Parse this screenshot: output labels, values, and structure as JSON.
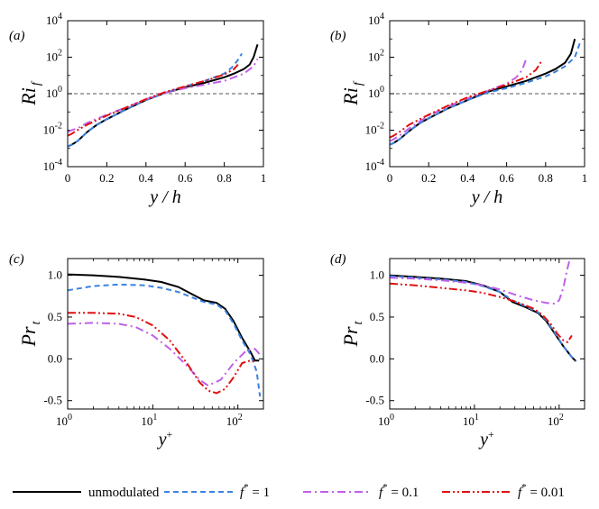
{
  "chart_data": [
    {
      "type": "line",
      "panel": "(a)",
      "ylabel": "Ri",
      "ylabel_sub": "f",
      "xlabel": "y / h",
      "x_scale": "linear",
      "y_scale": "log",
      "xlim": [
        0,
        1
      ],
      "ylim_exp": [
        -4,
        4
      ],
      "x_ticks": [
        0,
        0.2,
        0.4,
        0.6,
        0.8,
        1
      ],
      "x_tick_labels": [
        "0",
        "0.2",
        "0.4",
        "0.6",
        "0.8",
        "1"
      ],
      "y_tick_exps": [
        -4,
        -2,
        0,
        2,
        4
      ],
      "reference_line_exp": 0,
      "series": [
        {
          "name": "unmodulated",
          "x": [
            0,
            0.02,
            0.05,
            0.1,
            0.15,
            0.2,
            0.3,
            0.4,
            0.5,
            0.6,
            0.7,
            0.8,
            0.85,
            0.9,
            0.93,
            0.95,
            0.97
          ],
          "log10y": [
            -2.9,
            -2.8,
            -2.6,
            -2.1,
            -1.7,
            -1.4,
            -0.85,
            -0.35,
            0.05,
            0.35,
            0.6,
            0.9,
            1.1,
            1.35,
            1.6,
            2.0,
            2.7
          ]
        },
        {
          "name": "f* = 1",
          "x": [
            0,
            0.02,
            0.05,
            0.1,
            0.15,
            0.2,
            0.3,
            0.4,
            0.5,
            0.6,
            0.7,
            0.8,
            0.84,
            0.87,
            0.89
          ],
          "log10y": [
            -2.9,
            -2.8,
            -2.6,
            -2.1,
            -1.7,
            -1.4,
            -0.85,
            -0.35,
            0.05,
            0.4,
            0.7,
            1.1,
            1.45,
            1.85,
            2.2
          ]
        },
        {
          "name": "f* = 0.1",
          "x": [
            0,
            0.02,
            0.05,
            0.1,
            0.2,
            0.3,
            0.4,
            0.5,
            0.6,
            0.7,
            0.8,
            0.9,
            0.95,
            0.97
          ],
          "log10y": [
            -2.1,
            -2.0,
            -1.9,
            -1.6,
            -1.15,
            -0.75,
            -0.3,
            0.05,
            0.3,
            0.5,
            0.7,
            1.1,
            1.5,
            1.9
          ]
        },
        {
          "name": "f* = 0.01",
          "x": [
            0,
            0.02,
            0.05,
            0.1,
            0.2,
            0.3,
            0.4,
            0.5,
            0.6,
            0.7,
            0.8,
            0.85,
            0.87
          ],
          "log10y": [
            -2.3,
            -2.2,
            -2.0,
            -1.7,
            -1.2,
            -0.75,
            -0.3,
            0.1,
            0.4,
            0.7,
            1.05,
            1.35,
            1.6
          ]
        }
      ]
    },
    {
      "type": "line",
      "panel": "(b)",
      "ylabel": "Ri",
      "ylabel_sub": "f",
      "xlabel": "y / h",
      "x_scale": "linear",
      "y_scale": "log",
      "xlim": [
        0,
        1
      ],
      "ylim_exp": [
        -4,
        4
      ],
      "x_ticks": [
        0,
        0.2,
        0.4,
        0.6,
        0.8,
        1
      ],
      "x_tick_labels": [
        "0",
        "0.2",
        "0.4",
        "0.6",
        "0.8",
        "1"
      ],
      "y_tick_exps": [
        -4,
        -2,
        0,
        2,
        4
      ],
      "reference_line_exp": 0,
      "series": [
        {
          "name": "unmodulated",
          "x": [
            0,
            0.02,
            0.05,
            0.1,
            0.15,
            0.2,
            0.3,
            0.4,
            0.5,
            0.6,
            0.7,
            0.8,
            0.85,
            0.9,
            0.93,
            0.95
          ],
          "log10y": [
            -2.8,
            -2.7,
            -2.5,
            -2.05,
            -1.65,
            -1.35,
            -0.8,
            -0.35,
            0.1,
            0.4,
            0.7,
            1.1,
            1.35,
            1.7,
            2.2,
            3.0
          ]
        },
        {
          "name": "f* = 1",
          "x": [
            0,
            0.02,
            0.05,
            0.1,
            0.15,
            0.2,
            0.3,
            0.4,
            0.5,
            0.6,
            0.7,
            0.8,
            0.85,
            0.9,
            0.95,
            0.98
          ],
          "log10y": [
            -2.8,
            -2.7,
            -2.5,
            -2.05,
            -1.65,
            -1.35,
            -0.8,
            -0.35,
            0.05,
            0.3,
            0.6,
            0.95,
            1.2,
            1.5,
            2.0,
            2.9
          ]
        },
        {
          "name": "f* = 0.1",
          "x": [
            0,
            0.02,
            0.05,
            0.1,
            0.2,
            0.3,
            0.4,
            0.5,
            0.6,
            0.65,
            0.68,
            0.7
          ],
          "log10y": [
            -2.6,
            -2.5,
            -2.3,
            -1.9,
            -1.2,
            -0.7,
            -0.25,
            0.15,
            0.55,
            0.9,
            1.3,
            1.9
          ]
        },
        {
          "name": "f* = 0.01",
          "x": [
            0,
            0.02,
            0.05,
            0.1,
            0.2,
            0.3,
            0.4,
            0.5,
            0.6,
            0.7,
            0.75,
            0.78
          ],
          "log10y": [
            -2.4,
            -2.3,
            -2.1,
            -1.7,
            -1.15,
            -0.65,
            -0.2,
            0.15,
            0.5,
            0.9,
            1.3,
            1.8
          ]
        }
      ]
    },
    {
      "type": "line",
      "panel": "(c)",
      "ylabel": "Pr",
      "ylabel_sub": "t",
      "xlabel": "y",
      "xlabel_sup": "+",
      "x_scale": "log",
      "y_scale": "linear",
      "xlim_exp": [
        0,
        2.3
      ],
      "ylim": [
        -0.6,
        1.2
      ],
      "x_tick_exps": [
        0,
        1,
        2
      ],
      "y_ticks": [
        -0.5,
        0,
        0.5,
        1
      ],
      "y_tick_labels": [
        "-0.5",
        "0.0",
        "0.5",
        "1.0"
      ],
      "series": [
        {
          "name": "unmodulated",
          "log10x": [
            0,
            0.3,
            0.6,
            0.9,
            1.1,
            1.3,
            1.45,
            1.6,
            1.75,
            1.85,
            1.95,
            2.05,
            2.15,
            2.2,
            2.25
          ],
          "y": [
            1.01,
            1.0,
            0.98,
            0.95,
            0.92,
            0.86,
            0.78,
            0.7,
            0.67,
            0.6,
            0.45,
            0.25,
            0.08,
            -0.02,
            -0.02
          ]
        },
        {
          "name": "f* = 1",
          "log10x": [
            0,
            0.3,
            0.6,
            0.9,
            1.1,
            1.3,
            1.45,
            1.6,
            1.75,
            1.85,
            1.95,
            2.05,
            2.15,
            2.22,
            2.26
          ],
          "y": [
            0.82,
            0.87,
            0.89,
            0.88,
            0.85,
            0.8,
            0.74,
            0.68,
            0.65,
            0.58,
            0.42,
            0.22,
            0.05,
            -0.15,
            -0.45
          ]
        },
        {
          "name": "f* = 0.1",
          "log10x": [
            0,
            0.3,
            0.6,
            0.8,
            1.0,
            1.2,
            1.4,
            1.55,
            1.65,
            1.8,
            1.95,
            2.1,
            2.2,
            2.26
          ],
          "y": [
            0.42,
            0.43,
            0.42,
            0.38,
            0.28,
            0.12,
            -0.08,
            -0.25,
            -0.32,
            -0.25,
            -0.05,
            0.1,
            0.12,
            0.05
          ]
        },
        {
          "name": "f* = 0.01",
          "log10x": [
            0,
            0.3,
            0.6,
            0.8,
            1.0,
            1.2,
            1.4,
            1.55,
            1.65,
            1.75,
            1.85,
            1.95,
            2.05,
            2.15,
            2.2
          ],
          "y": [
            0.55,
            0.55,
            0.54,
            0.5,
            0.4,
            0.22,
            -0.05,
            -0.28,
            -0.38,
            -0.41,
            -0.36,
            -0.22,
            -0.05,
            -0.02,
            -0.03
          ]
        }
      ]
    },
    {
      "type": "line",
      "panel": "(d)",
      "ylabel": "Pr",
      "ylabel_sub": "t",
      "xlabel": "y",
      "xlabel_sup": "+",
      "x_scale": "log",
      "y_scale": "linear",
      "xlim_exp": [
        0,
        2.3
      ],
      "ylim": [
        -0.6,
        1.2
      ],
      "x_tick_exps": [
        0,
        1,
        2
      ],
      "y_ticks": [
        -0.5,
        0,
        0.5,
        1
      ],
      "y_tick_labels": [
        "-0.5",
        "0.0",
        "0.5",
        "1.0"
      ],
      "series": [
        {
          "name": "unmodulated",
          "log10x": [
            0,
            0.3,
            0.6,
            0.9,
            1.1,
            1.3,
            1.45,
            1.6,
            1.75,
            1.85,
            1.95,
            2.05,
            2.15,
            2.2
          ],
          "y": [
            1.0,
            0.98,
            0.96,
            0.93,
            0.88,
            0.8,
            0.68,
            0.62,
            0.55,
            0.45,
            0.3,
            0.15,
            0.02,
            -0.03
          ]
        },
        {
          "name": "f* = 1",
          "log10x": [
            0,
            0.3,
            0.6,
            0.9,
            1.1,
            1.3,
            1.45,
            1.6,
            1.75,
            1.85,
            1.95,
            2.05,
            2.15,
            2.2
          ],
          "y": [
            0.99,
            0.97,
            0.95,
            0.92,
            0.87,
            0.8,
            0.7,
            0.63,
            0.56,
            0.46,
            0.31,
            0.15,
            0.02,
            -0.03
          ]
        },
        {
          "name": "f* = 0.1",
          "log10x": [
            0,
            0.3,
            0.6,
            0.9,
            1.1,
            1.3,
            1.5,
            1.7,
            1.85,
            1.95,
            2.0,
            2.05,
            2.09,
            2.12
          ],
          "y": [
            0.97,
            0.96,
            0.94,
            0.91,
            0.88,
            0.83,
            0.76,
            0.7,
            0.67,
            0.66,
            0.7,
            0.85,
            1.05,
            1.17
          ]
        },
        {
          "name": "f* = 0.01",
          "log10x": [
            0,
            0.3,
            0.6,
            0.9,
            1.1,
            1.3,
            1.5,
            1.7,
            1.8,
            1.9,
            1.98,
            2.05,
            2.1,
            2.15
          ],
          "y": [
            0.9,
            0.88,
            0.85,
            0.82,
            0.79,
            0.74,
            0.68,
            0.6,
            0.53,
            0.42,
            0.3,
            0.22,
            0.2,
            0.28
          ]
        }
      ]
    }
  ],
  "legend": {
    "items": [
      {
        "label": "unmodulated",
        "style_key": "unmodulated"
      },
      {
        "label": "= 1",
        "prefix": "f",
        "sup": "*",
        "style_key": "f1"
      },
      {
        "label": "= 0.1",
        "prefix": "f",
        "sup": "*",
        "style_key": "f01"
      },
      {
        "label": "= 0.01",
        "prefix": "f",
        "sup": "*",
        "style_key": "f001"
      }
    ]
  },
  "series_styles": {
    "unmodulated": {
      "color": "#000000",
      "dash": ""
    },
    "f* = 1": {
      "color": "#3b82e0",
      "dash": "6,4"
    },
    "f* = 0.1": {
      "color": "#c060e8",
      "dash": "9,4,2,4"
    },
    "f* = 0.01": {
      "color": "#e01010",
      "dash": "9,3,2,3,2,3"
    }
  },
  "labels": {
    "ten": "10"
  }
}
